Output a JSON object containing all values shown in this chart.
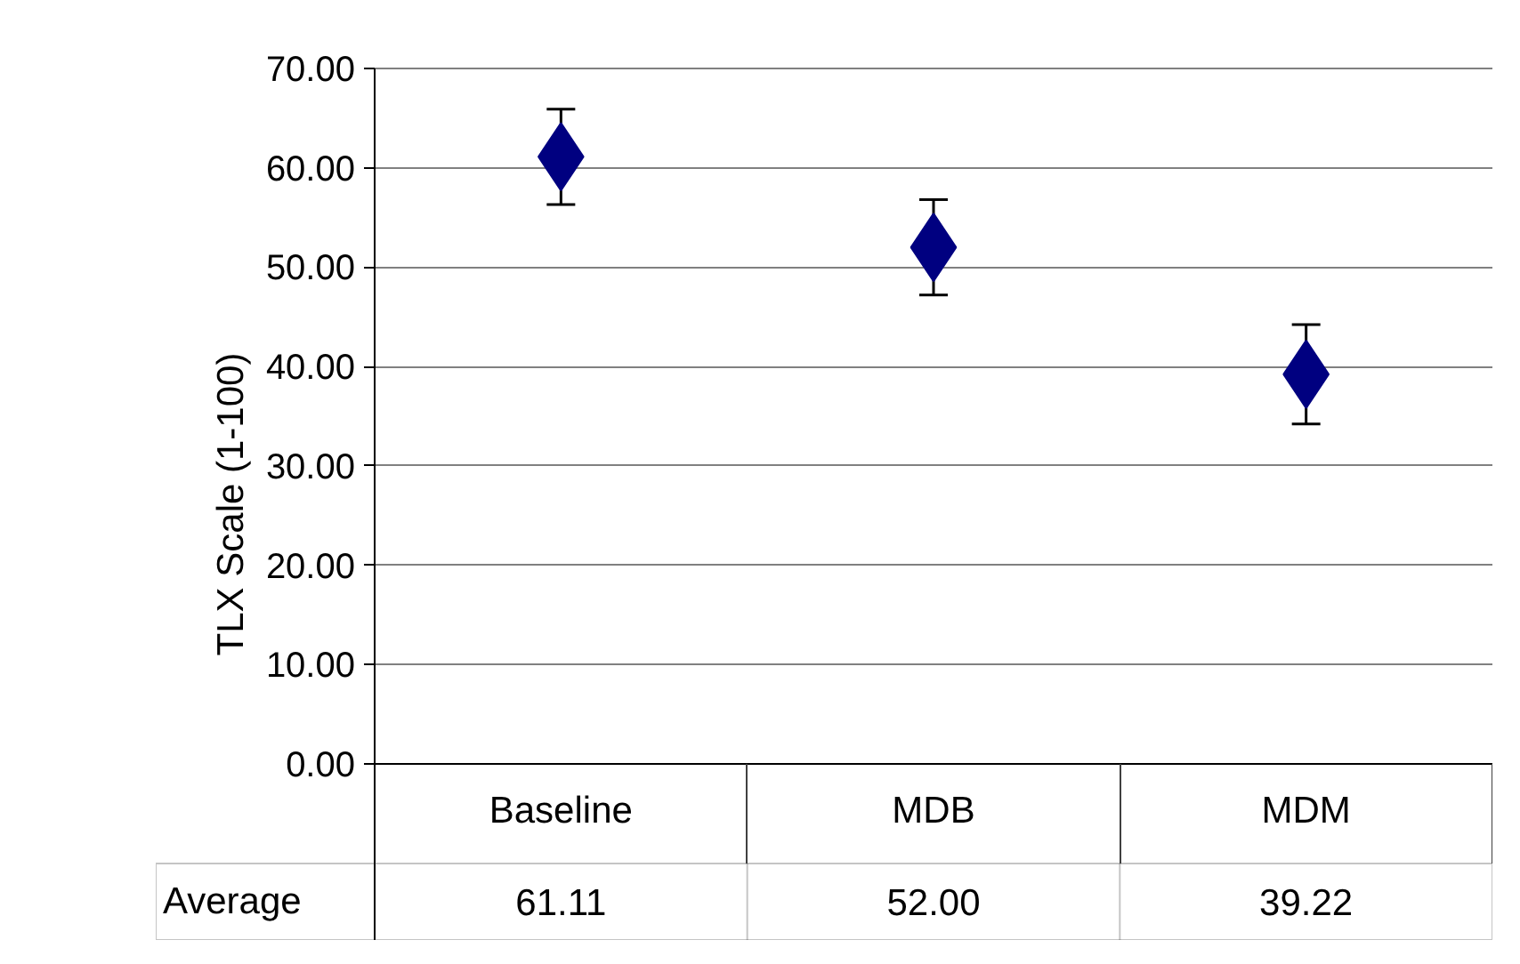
{
  "chart_data": {
    "type": "scatter",
    "ylabel": "TLX Scale (1-100)",
    "categories": [
      "Baseline",
      "MDB",
      "MDM"
    ],
    "series": [
      {
        "name": "Average",
        "color": "#000080",
        "values": [
          61.11,
          52.0,
          39.22
        ],
        "value_labels": [
          "61.11",
          "52.00",
          "39.22"
        ],
        "errors": [
          4.8,
          4.8,
          5.0
        ]
      }
    ],
    "ylim": [
      0,
      70
    ],
    "yticks": [
      {
        "value": 0,
        "label": "0.00"
      },
      {
        "value": 10,
        "label": "10.00"
      },
      {
        "value": 20,
        "label": "20.00"
      },
      {
        "value": 30,
        "label": "30.00"
      },
      {
        "value": 40,
        "label": "40.00"
      },
      {
        "value": 50,
        "label": "50.00"
      },
      {
        "value": 60,
        "label": "60.00"
      },
      {
        "value": 70,
        "label": "70.00"
      }
    ],
    "grid": "y",
    "marker": "diamond"
  }
}
